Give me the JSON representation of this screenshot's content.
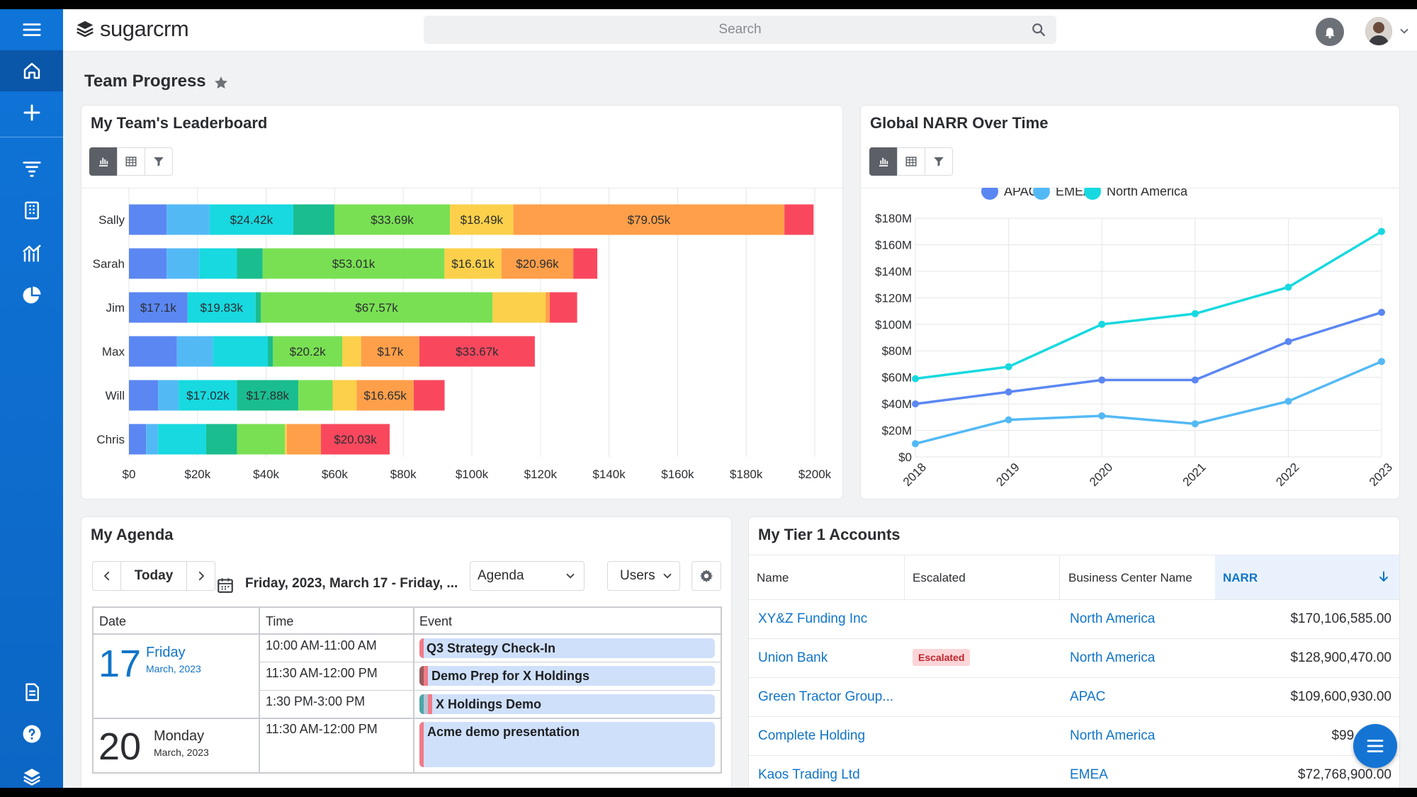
{
  "app": {
    "logo_text": "sugarcrm",
    "brand_color": "#0f74d8"
  },
  "search": {
    "placeholder": "Search"
  },
  "sidebar": {
    "items": [
      "menu-icon",
      "home-icon",
      "plus-icon",
      "filter-list-icon",
      "building-icon",
      "chart-icon",
      "pie-icon",
      "document-icon",
      "help-icon",
      "layers-icon"
    ]
  },
  "page": {
    "title": "Team Progress"
  },
  "leaderboard": {
    "title": "My Team's Leaderboard",
    "chart_data": {
      "type": "bar",
      "orientation": "horizontal",
      "stacked": true,
      "xlim": [
        0,
        200000
      ],
      "x_ticks": [
        "$0",
        "$20k",
        "$40k",
        "$60k",
        "$80k",
        "$100k",
        "$120k",
        "$140k",
        "$160k",
        "$180k",
        "$200k"
      ],
      "grid": true,
      "categories": [
        "Sally",
        "Sarah",
        "Jim",
        "Max",
        "Will",
        "Chris"
      ],
      "series": [
        {
          "color": "#5b87f2",
          "values": [
            11000,
            11000,
            17100,
            14000,
            8500,
            5000
          ]
        },
        {
          "color": "#53b9f5",
          "values": [
            12500,
            9500,
            0,
            10500,
            6000,
            3500
          ]
        },
        {
          "color": "#17d9df",
          "values": [
            24420,
            11000,
            19830,
            16000,
            17020,
            14000
          ]
        },
        {
          "color": "#1abd8e",
          "values": [
            12000,
            7500,
            1500,
            1500,
            17880,
            9000
          ]
        },
        {
          "color": "#79e053",
          "values": [
            33690,
            53010,
            67570,
            20200,
            10000,
            14000
          ]
        },
        {
          "color": "#fcd04a",
          "values": [
            18490,
            16610,
            15500,
            5500,
            7000,
            500
          ]
        },
        {
          "color": "#ff9f4a",
          "values": [
            79050,
            20960,
            1200,
            17000,
            16650,
            10000
          ]
        },
        {
          "color": "#f9485e",
          "values": [
            8500,
            7000,
            8000,
            33670,
            9000,
            20030
          ]
        }
      ],
      "data_labels": [
        [
          "",
          "",
          "$24.42k",
          "",
          "$33.69k",
          "$18.49k",
          "$79.05k",
          ""
        ],
        [
          "",
          "",
          "",
          "",
          "$53.01k",
          "$16.61k",
          "$20.96k",
          ""
        ],
        [
          "$17.1k",
          "",
          "$19.83k",
          "",
          "$67.57k",
          "",
          "",
          ""
        ],
        [
          "",
          "",
          "",
          "",
          "$20.2k",
          "",
          "$17k",
          "$33.67k"
        ],
        [
          "",
          "",
          "$17.02k",
          "$17.88k",
          "",
          "",
          "$16.65k",
          ""
        ],
        [
          "",
          "",
          "",
          "",
          "",
          "",
          "",
          "$20.03k"
        ]
      ]
    }
  },
  "narr": {
    "title": "Global NARR Over Time",
    "chart_data": {
      "type": "line",
      "x": [
        "2018",
        "2019",
        "2020",
        "2021",
        "2022",
        "2023"
      ],
      "ylim": [
        0,
        180
      ],
      "y_ticks": [
        "$0",
        "$20M",
        "$40M",
        "$60M",
        "$80M",
        "$100M",
        "$120M",
        "$140M",
        "$160M",
        "$180M"
      ],
      "legend_position": "top-center",
      "series": [
        {
          "name": "APAC",
          "color": "#5b87f2",
          "values": [
            40,
            49,
            58,
            58,
            87,
            109
          ]
        },
        {
          "name": "EMEA",
          "color": "#53b9f5",
          "values": [
            10,
            28,
            31,
            25,
            42,
            72
          ]
        },
        {
          "name": "North America",
          "color": "#17d9df",
          "values": [
            59,
            68,
            100,
            108,
            128,
            170
          ]
        }
      ]
    }
  },
  "agenda": {
    "title": "My Agenda",
    "today_label": "Today",
    "date_range": "Friday, 2023, March 17 - Friday, ...",
    "view_select": "Agenda",
    "users_select": "Users",
    "headers": [
      "Date",
      "Time",
      "Event"
    ],
    "days": [
      {
        "num": "17",
        "weekday": "Friday",
        "month": "March, 2023",
        "events": [
          {
            "time": "10:00 AM-11:00 AM",
            "title": "Q3 Strategy Check-In"
          },
          {
            "time": "11:30 AM-12:00 PM",
            "title": "Demo Prep for X Holdings"
          },
          {
            "time": "1:30 PM-3:00 PM",
            "title": "X Holdings Demo"
          }
        ]
      },
      {
        "num": "20",
        "weekday": "Monday",
        "month": "March, 2023",
        "events": [
          {
            "time": "11:30 AM-12:00 PM",
            "title": "Acme demo presentation"
          }
        ]
      }
    ]
  },
  "accounts": {
    "title": "My Tier 1 Accounts",
    "headers": [
      "Name",
      "Escalated",
      "Business Center Name",
      "NARR"
    ],
    "rows": [
      {
        "name": "XY&Z Funding Inc",
        "escalated": "",
        "center": "North America",
        "narr": "$170,106,585.00"
      },
      {
        "name": "Union Bank",
        "escalated": "Escalated",
        "center": "North America",
        "narr": "$128,900,470.00"
      },
      {
        "name": "Green Tractor Group...",
        "escalated": "",
        "center": "APAC",
        "narr": "$109,600,930.00"
      },
      {
        "name": "Complete Holding",
        "escalated": "",
        "center": "North America",
        "narr": "$99,890,0"
      },
      {
        "name": "Kaos Trading Ltd",
        "escalated": "",
        "center": "EMEA",
        "narr": "$72,768,900.00"
      }
    ]
  }
}
